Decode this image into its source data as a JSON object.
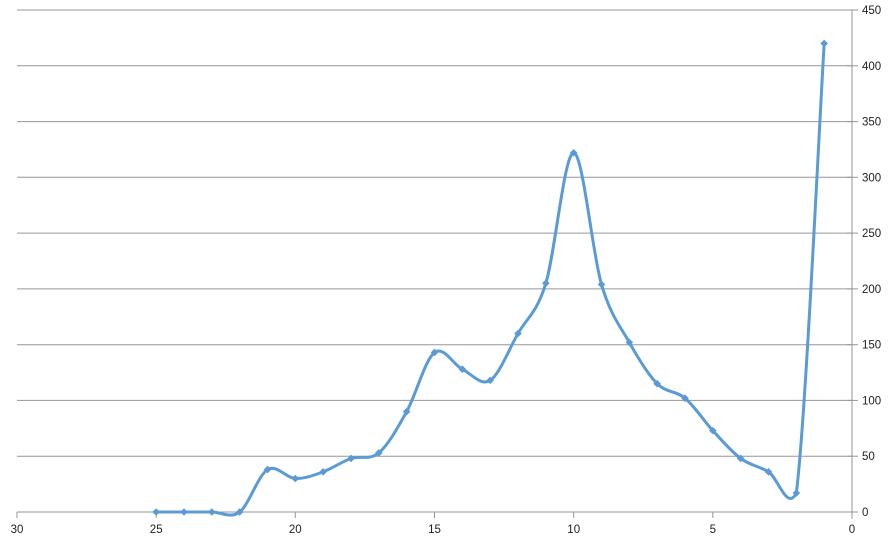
{
  "chart_data": {
    "type": "line",
    "title": "",
    "xlabel": "",
    "ylabel": "",
    "smooth": true,
    "legend": "none",
    "marker": "diamond",
    "x": [
      25,
      24,
      23,
      22,
      21,
      20,
      19,
      18,
      17,
      16,
      15,
      14,
      13,
      12,
      11,
      10,
      9,
      8,
      7,
      6,
      5,
      4,
      3,
      2,
      1
    ],
    "values": [
      0,
      0,
      0,
      0,
      38,
      30,
      36,
      48,
      53,
      90,
      143,
      128,
      118,
      160,
      205,
      322,
      204,
      152,
      115,
      102,
      73,
      48,
      36,
      17,
      420
    ],
    "x_axis": {
      "reversed": true,
      "min": 0,
      "max": 30,
      "ticks": [
        30,
        25,
        20,
        15,
        10,
        5,
        0
      ],
      "tick_labels": [
        "30",
        "25",
        "20",
        "15",
        "10",
        "5",
        "0"
      ]
    },
    "y_axis": {
      "side": "right",
      "min": 0,
      "max": 450,
      "ticks": [
        0,
        50,
        100,
        150,
        200,
        250,
        300,
        350,
        400,
        450
      ],
      "tick_labels": [
        "0",
        "50",
        "100",
        "150",
        "200",
        "250",
        "300",
        "350",
        "400",
        "450"
      ]
    },
    "colors": {
      "series": "#5b9bd5",
      "gridline": "#969696",
      "axis": "#969696",
      "tick_text": "#212121",
      "background": "#ffffff"
    },
    "grid": "horizontal-only"
  }
}
